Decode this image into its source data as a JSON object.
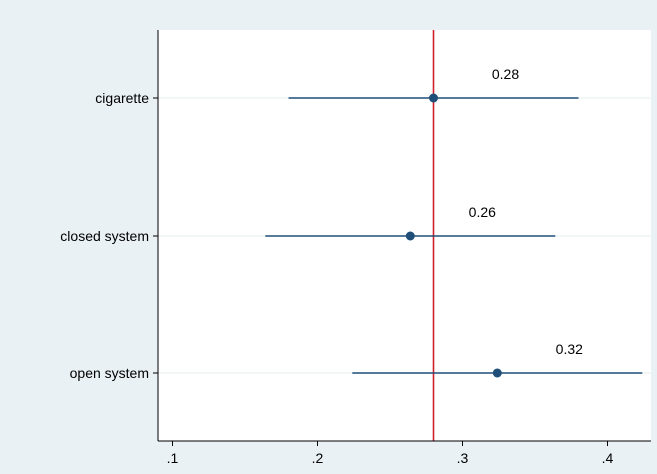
{
  "chart_data": {
    "type": "scatter",
    "subtype": "coefficient-plot",
    "title": "",
    "xlabel": "",
    "ylabel": "",
    "categories": [
      "cigarette",
      "closed system",
      "open system"
    ],
    "points": [
      {
        "category": "cigarette",
        "estimate": 0.28,
        "ci_low": 0.18,
        "ci_high": 0.38,
        "label": "0.28"
      },
      {
        "category": "closed system",
        "estimate": 0.264,
        "ci_low": 0.164,
        "ci_high": 0.364,
        "label": "0.26"
      },
      {
        "category": "open system",
        "estimate": 0.324,
        "ci_low": 0.224,
        "ci_high": 0.424,
        "label": "0.32"
      }
    ],
    "reference_line": {
      "x": 0.28,
      "color": "#d0212a"
    },
    "xlim": [
      0.09,
      0.43
    ],
    "xticks": [
      0.1,
      0.2,
      0.3,
      0.4
    ],
    "xtick_labels": [
      ".1",
      ".2",
      ".3",
      ".4"
    ],
    "grid": "horizontal",
    "legend": "none",
    "colors": {
      "outer_background": "#eaf1f4",
      "plot_background": "#ffffff",
      "series": "#1f4e79",
      "reference_line": "#d0212a",
      "gridline": "#e6ecee",
      "axis": "#000000"
    }
  }
}
